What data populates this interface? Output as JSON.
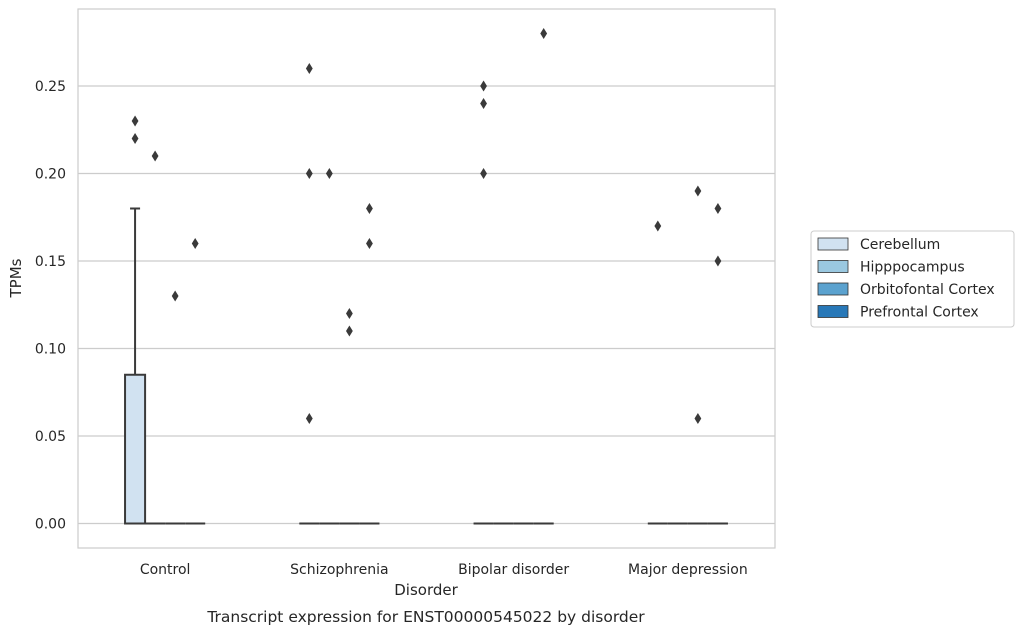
{
  "chart_data": {
    "type": "box",
    "xlabel": "Disorder",
    "ylabel": "TPMs",
    "caption": "Transcript expression for ENST00000545022 by disorder",
    "categories": [
      "Control",
      "Schizophrenia",
      "Bipolar disorder",
      "Major depression"
    ],
    "yticks": [
      "0.00",
      "0.05",
      "0.10",
      "0.15",
      "0.20",
      "0.25"
    ],
    "ylim": [
      -0.014,
      0.294
    ],
    "grid": "horizontal",
    "legend_position": "right",
    "hue_colors": {
      "Cerebellum": "#d1e2f1",
      "Hipppocampus": "#9ac8e0",
      "Orbitofontal Cortex": "#5ba2cf",
      "Prefrontal Cortex": "#2878b8"
    },
    "legend": [
      "Cerebellum",
      "Hipppocampus",
      "Orbitofontal Cortex",
      "Prefrontal Cortex"
    ],
    "series": [
      {
        "category": "Control",
        "hue": "Cerebellum",
        "q1": 0.0,
        "median": 0.0,
        "q3": 0.085,
        "whisker_low": 0.0,
        "whisker_high": 0.18,
        "outliers": [
          0.23,
          0.22
        ]
      },
      {
        "category": "Control",
        "hue": "Hipppocampus",
        "q1": 0.0,
        "median": 0.0,
        "q3": 0.0,
        "whisker_low": 0.0,
        "whisker_high": 0.0,
        "outliers": [
          0.21
        ]
      },
      {
        "category": "Control",
        "hue": "Orbitofontal Cortex",
        "q1": 0.0,
        "median": 0.0,
        "q3": 0.0,
        "whisker_low": 0.0,
        "whisker_high": 0.0,
        "outliers": [
          0.13
        ]
      },
      {
        "category": "Control",
        "hue": "Prefrontal Cortex",
        "q1": 0.0,
        "median": 0.0,
        "q3": 0.0,
        "whisker_low": 0.0,
        "whisker_high": 0.0,
        "outliers": [
          0.16
        ]
      },
      {
        "category": "Schizophrenia",
        "hue": "Cerebellum",
        "q1": 0.0,
        "median": 0.0,
        "q3": 0.0,
        "whisker_low": 0.0,
        "whisker_high": 0.0,
        "outliers": [
          0.26,
          0.2,
          0.06
        ]
      },
      {
        "category": "Schizophrenia",
        "hue": "Hipppocampus",
        "q1": 0.0,
        "median": 0.0,
        "q3": 0.0,
        "whisker_low": 0.0,
        "whisker_high": 0.0,
        "outliers": [
          0.2
        ]
      },
      {
        "category": "Schizophrenia",
        "hue": "Orbitofontal Cortex",
        "q1": 0.0,
        "median": 0.0,
        "q3": 0.0,
        "whisker_low": 0.0,
        "whisker_high": 0.0,
        "outliers": [
          0.12,
          0.11
        ]
      },
      {
        "category": "Schizophrenia",
        "hue": "Prefrontal Cortex",
        "q1": 0.0,
        "median": 0.0,
        "q3": 0.0,
        "whisker_low": 0.0,
        "whisker_high": 0.0,
        "outliers": [
          0.18,
          0.16
        ]
      },
      {
        "category": "Bipolar disorder",
        "hue": "Cerebellum",
        "q1": 0.0,
        "median": 0.0,
        "q3": 0.0,
        "whisker_low": 0.0,
        "whisker_high": 0.0,
        "outliers": [
          0.25,
          0.24,
          0.2
        ]
      },
      {
        "category": "Bipolar disorder",
        "hue": "Hipppocampus",
        "q1": 0.0,
        "median": 0.0,
        "q3": 0.0,
        "whisker_low": 0.0,
        "whisker_high": 0.0,
        "outliers": []
      },
      {
        "category": "Bipolar disorder",
        "hue": "Orbitofontal Cortex",
        "q1": 0.0,
        "median": 0.0,
        "q3": 0.0,
        "whisker_low": 0.0,
        "whisker_high": 0.0,
        "outliers": []
      },
      {
        "category": "Bipolar disorder",
        "hue": "Prefrontal Cortex",
        "q1": 0.0,
        "median": 0.0,
        "q3": 0.0,
        "whisker_low": 0.0,
        "whisker_high": 0.0,
        "outliers": [
          0.28
        ]
      },
      {
        "category": "Major depression",
        "hue": "Cerebellum",
        "q1": 0.0,
        "median": 0.0,
        "q3": 0.0,
        "whisker_low": 0.0,
        "whisker_high": 0.0,
        "outliers": [
          0.17
        ]
      },
      {
        "category": "Major depression",
        "hue": "Hipppocampus",
        "q1": 0.0,
        "median": 0.0,
        "q3": 0.0,
        "whisker_low": 0.0,
        "whisker_high": 0.0,
        "outliers": []
      },
      {
        "category": "Major depression",
        "hue": "Orbitofontal Cortex",
        "q1": 0.0,
        "median": 0.0,
        "q3": 0.0,
        "whisker_low": 0.0,
        "whisker_high": 0.0,
        "outliers": [
          0.19,
          0.06
        ]
      },
      {
        "category": "Major depression",
        "hue": "Prefrontal Cortex",
        "q1": 0.0,
        "median": 0.0,
        "q3": 0.0,
        "whisker_low": 0.0,
        "whisker_high": 0.0,
        "outliers": [
          0.18,
          0.15
        ]
      }
    ]
  }
}
